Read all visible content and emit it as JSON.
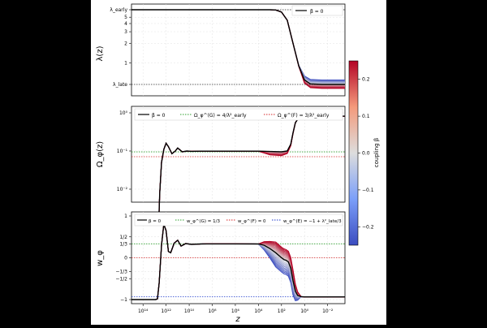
{
  "colors": {
    "beta0": "#000000",
    "green_ref": "#2ca02c",
    "red_ref": "#d62728",
    "blue_ref": "#1f3bcc",
    "cmap_neg": "#3b4cc0",
    "cmap_mid": "#dddddd",
    "cmap_pos": "#b40426"
  },
  "chart_data": [
    {
      "type": "line",
      "panel": "top",
      "ylabel": "λ(z)",
      "xscale": "log-reversed",
      "xlim_log10": [
        15,
        -3.5
      ],
      "ytick_labels": [
        "λ_early",
        "5",
        "4",
        "3",
        "2",
        "1",
        "λ_late"
      ],
      "legend": {
        "placement": "top-right",
        "entries": [
          {
            "label": "β = 0",
            "style": "solid-black"
          }
        ]
      },
      "reference_lines": [
        {
          "y": "λ_early",
          "style": "dotted"
        },
        {
          "y": "λ_late",
          "style": "dotted"
        }
      ],
      "series": [
        {
          "name": "β = 0",
          "x_log10": [
            15,
            3.0,
            2.5,
            2.0,
            1.5,
            1.0,
            0.5,
            0.0,
            -0.5,
            -1.5,
            -3.5
          ],
          "y": [
            6.5,
            6.5,
            6.45,
            6.0,
            4.5,
            2.0,
            0.9,
            0.55,
            0.48,
            0.47,
            0.47
          ]
        }
      ],
      "beta_fan": {
        "beta_min": -0.25,
        "beta_max": 0.25,
        "y_late_spread_neg": 0.08,
        "y_late_spread_pos": -0.06
      }
    },
    {
      "type": "line",
      "panel": "middle",
      "ylabel": "Ω_φ(z)",
      "yscale": "log",
      "ytick_labels": [
        "10⁰",
        "10⁻¹",
        "10⁻²"
      ],
      "legend": {
        "placement": "top",
        "entries": [
          {
            "label": "β = 0",
            "style": "solid-black"
          },
          {
            "label": "Ω_φ^(G) = 4/λ²_early",
            "style": "dotted-green"
          },
          {
            "label": "Ω_φ^(F) = 3/λ²_early",
            "style": "dotted-red"
          }
        ]
      },
      "reference_lines": [
        {
          "y": 0.095,
          "color": "green_ref"
        },
        {
          "y": 0.071,
          "color": "red_ref"
        }
      ],
      "series": [
        {
          "name": "β = 0",
          "x_log10": [
            12.7,
            12.55,
            12.4,
            12.2,
            12.0,
            11.8,
            11.5,
            11.2,
            11.0,
            10.6,
            10.2,
            9.8,
            9.0,
            8.0,
            6.0,
            4.0,
            3.0,
            2.0,
            1.5,
            1.2,
            1.0,
            0.8,
            0.5,
            0.2,
            0.0,
            -0.5,
            -3.5
          ],
          "y": [
            0.0004,
            0.008,
            0.05,
            0.11,
            0.16,
            0.13,
            0.085,
            0.1,
            0.12,
            0.095,
            0.1,
            0.098,
            0.099,
            0.099,
            0.099,
            0.099,
            0.097,
            0.095,
            0.1,
            0.15,
            0.3,
            0.55,
            0.75,
            0.8,
            0.82,
            0.82,
            0.82
          ]
        }
      ],
      "beta_fan": {
        "dip_region_log10": [
          4,
          0.8
        ],
        "dip_factor_pos": 0.78,
        "dip_factor_neg": 0.97
      }
    },
    {
      "type": "line",
      "panel": "bottom",
      "ylabel": "w_φ",
      "xlabel": "z",
      "xtick_labels": [
        "10¹⁴",
        "10¹²",
        "10¹⁰",
        "10⁸",
        "10⁶",
        "10⁴",
        "10²",
        "10⁰",
        "10⁻²"
      ],
      "ytick_labels": [
        "1",
        "1/2",
        "1/3",
        "0",
        "−1/3",
        "−1/2",
        "−1"
      ],
      "legend": {
        "placement": "top",
        "entries": [
          {
            "label": "β = 0",
            "style": "solid-black"
          },
          {
            "label": "w_φ^(G) = 1/3",
            "style": "dotted-green"
          },
          {
            "label": "w_φ^(F) = 0",
            "style": "dotted-red"
          },
          {
            "label": "w_φ^(E) = −1 + λ²_late/3",
            "style": "dotted-blue"
          }
        ]
      },
      "reference_lines": [
        {
          "y": 0.3333,
          "color": "green_ref"
        },
        {
          "y": 0,
          "color": "red_ref"
        },
        {
          "y": -0.93,
          "color": "blue_ref"
        }
      ],
      "series": [
        {
          "name": "β = 0",
          "x_log10": [
            15,
            12.9,
            12.75,
            12.6,
            12.4,
            12.2,
            12.0,
            11.8,
            11.6,
            11.3,
            11.0,
            10.7,
            10.3,
            9.8,
            9.0,
            8.0,
            6.0,
            4.0,
            3.5,
            3.0,
            2.5,
            2.0,
            1.8,
            1.6,
            1.4,
            1.2,
            1.0,
            0.8,
            0.6,
            0.3,
            0.0,
            -0.5,
            -3.5
          ],
          "y": [
            -1,
            -1,
            -0.98,
            -0.6,
            0.3,
            0.8,
            0.65,
            0.15,
            0.12,
            0.35,
            0.42,
            0.28,
            0.34,
            0.32,
            0.33,
            0.333,
            0.333,
            0.33,
            0.3,
            0.22,
            0.12,
            0.0,
            -0.04,
            -0.06,
            -0.1,
            -0.25,
            -0.55,
            -0.8,
            -0.9,
            -0.93,
            -0.935,
            -0.935,
            -0.935
          ]
        }
      ],
      "beta_fan": {
        "region_log10": [
          4,
          0.8
        ],
        "upper_pos": 0.3,
        "lower_neg": -0.4
      }
    }
  ],
  "colorbar": {
    "label": "coupling β",
    "range": [
      -0.25,
      0.25
    ],
    "ticks": [
      "0.2",
      "0.1",
      "0.0",
      "−0.1",
      "−0.2"
    ]
  }
}
